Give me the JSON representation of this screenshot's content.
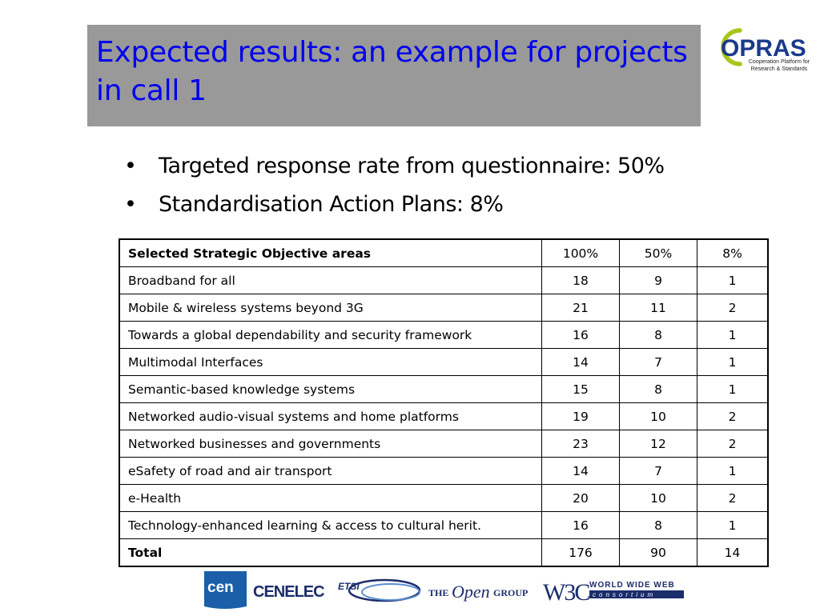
{
  "title": "Expected results: an example for projects in call 1",
  "logo": {
    "name": "OPRAS",
    "tagline": "Cooperation Platform for\nResearch & Standards",
    "colors": {
      "ring": "#a8c61a",
      "text": "#1a3a8c"
    }
  },
  "bullets": [
    {
      "bullet": "•",
      "text": "Targeted response rate from questionnaire: 50%"
    },
    {
      "bullet": "•",
      "text": "Standardisation Action Plans: 8%"
    }
  ],
  "table": {
    "headers": [
      "Selected Strategic Objective areas",
      "100%",
      "50%",
      "8%"
    ],
    "rows": [
      [
        "Broadband for all",
        "18",
        "9",
        "1"
      ],
      [
        "Mobile & wireless systems beyond 3G",
        "21",
        "11",
        "2"
      ],
      [
        "Towards a global dependability and security framework",
        "16",
        "8",
        "1"
      ],
      [
        "Multimodal Interfaces",
        "14",
        "7",
        "1"
      ],
      [
        "Semantic-based knowledge systems",
        "15",
        "8",
        "1"
      ],
      [
        "Networked audio-visual systems and home platforms",
        "19",
        "10",
        "2"
      ],
      [
        "Networked businesses and governments",
        "23",
        "12",
        "2"
      ],
      [
        "eSafety of road and air transport",
        "14",
        "7",
        "1"
      ],
      [
        "e-Health",
        "20",
        "10",
        "2"
      ],
      [
        "Technology-enhanced learning & access to cultural herit.",
        "16",
        "8",
        "1"
      ]
    ],
    "total": [
      "Total",
      "176",
      "90",
      "14"
    ]
  },
  "partner_logos": {
    "cen": "cen",
    "cenelec": "CENELEC",
    "etsi": "ETSI",
    "open_group_the": "THE",
    "open_group_open": "Open",
    "open_group_group": "GROUP",
    "w3c": "W3C",
    "www_top": "WORLD WIDE WEB",
    "www_bottom": "consortium"
  },
  "colors": {
    "title_bg": "#999999",
    "title_text": "#0000ee",
    "cen_blue": "#1a5fa8",
    "navy": "#1c2d6b"
  }
}
